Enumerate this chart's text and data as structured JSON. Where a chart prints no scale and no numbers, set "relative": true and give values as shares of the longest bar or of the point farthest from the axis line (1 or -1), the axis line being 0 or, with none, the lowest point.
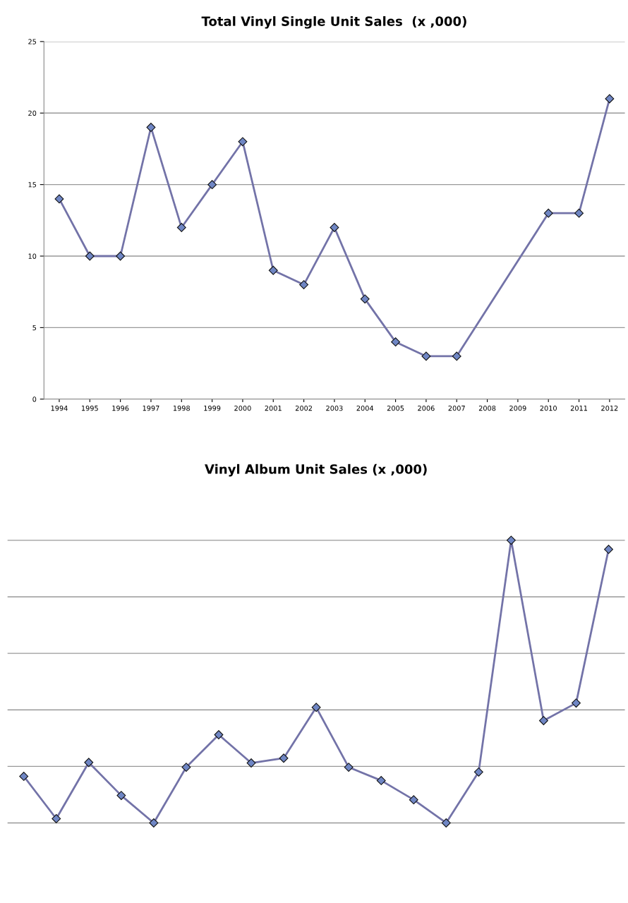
{
  "chart_data": [
    {
      "type": "line",
      "title": "Total Vinyl Single Unit Sales  (x ,000)",
      "categories": [
        "1994",
        "1995",
        "1996",
        "1997",
        "1998",
        "1999",
        "2000",
        "2001",
        "2002",
        "2003",
        "2004",
        "2005",
        "2006",
        "2007",
        "2008",
        "2009",
        "2010",
        "2011",
        "2012"
      ],
      "series": [
        {
          "color": "#7373a8",
          "values": [
            14,
            10,
            10,
            19,
            12,
            15,
            18,
            9,
            8,
            12,
            7,
            4,
            3,
            3,
            null,
            null,
            13,
            13,
            21
          ]
        }
      ],
      "ylim": [
        0,
        25
      ],
      "yticks": [
        0,
        5,
        10,
        15,
        20,
        25
      ],
      "grid": "y",
      "marker": "diamond",
      "line_style": "solid"
    },
    {
      "type": "line",
      "title": "Vinyl Album Unit Sales (x ,000)",
      "categories": [
        null,
        null,
        null,
        null,
        null,
        null,
        null,
        null,
        null,
        null,
        null,
        null,
        null,
        null,
        null,
        null,
        null,
        null,
        null
      ],
      "relative": true,
      "series": [
        {
          "color": "#7373a8",
          "values": [
            0.165,
            0.015,
            0.214,
            0.097,
            0,
            0.197,
            0.312,
            0.212,
            0.229,
            0.409,
            0.197,
            0.15,
            0.082,
            0,
            0.18,
            1,
            0.362,
            0.424,
            0.968
          ]
        }
      ],
      "grid": "y",
      "marker": "diamond",
      "line_style": "solid"
    }
  ]
}
